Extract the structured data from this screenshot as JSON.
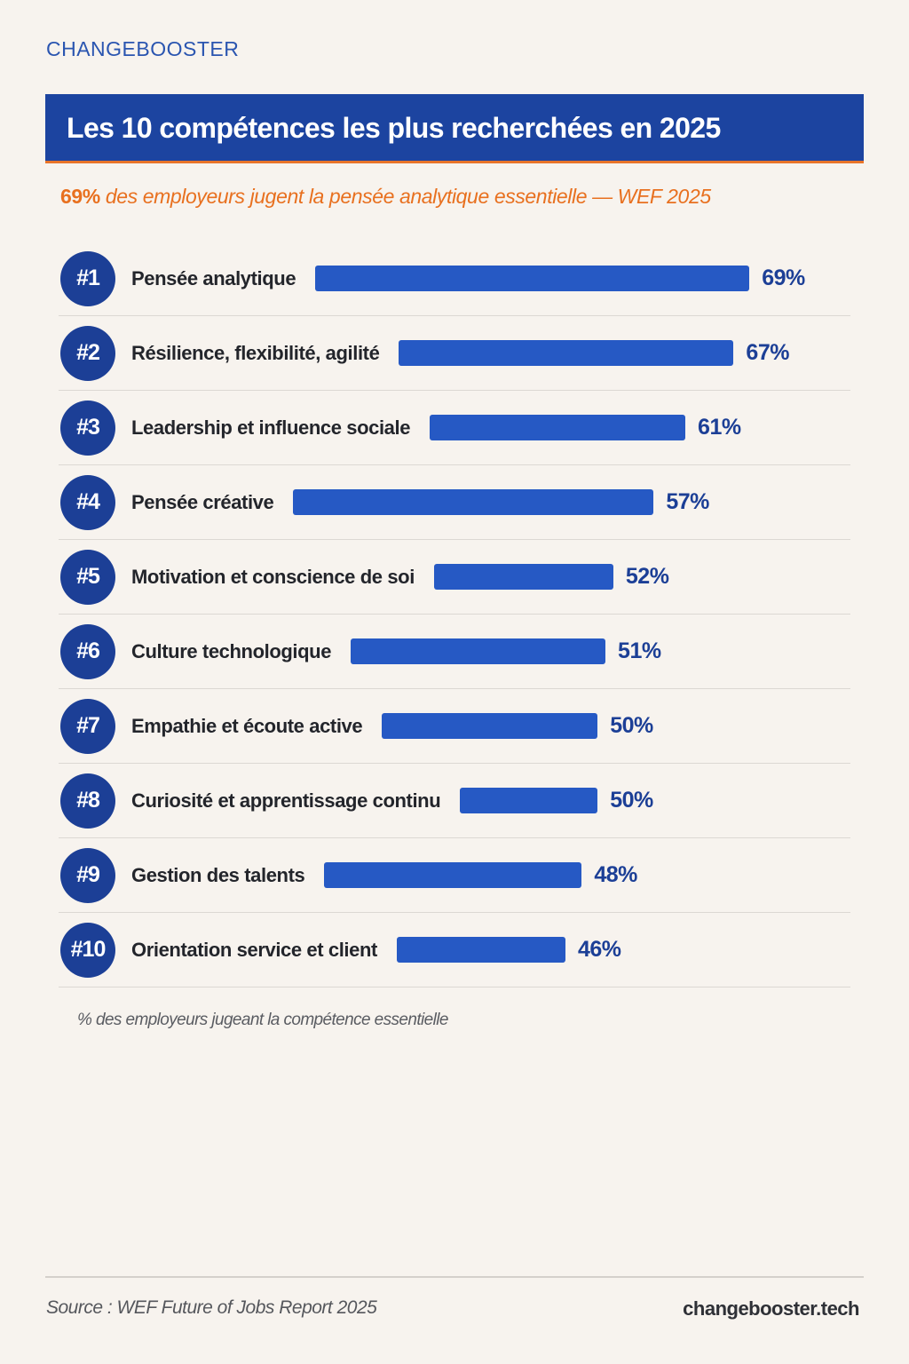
{
  "brand": "CHANGEBOOSTER",
  "colors": {
    "banner": "#1c44a0",
    "bar": "#2659c4",
    "badge": "#1c3f96",
    "accent": "#e8701f",
    "background": "#f7f3ee"
  },
  "chart_data": {
    "type": "bar",
    "orientation": "horizontal",
    "title": "Les 10 compétences les plus recherchées en 2025",
    "subtitle_highlight": "69%",
    "subtitle_rest": " des employeurs jugent la pensée analytique essentielle — WEF 2025",
    "ranks": [
      "#1",
      "#2",
      "#3",
      "#4",
      "#5",
      "#6",
      "#7",
      "#8",
      "#9",
      "#10"
    ],
    "categories": [
      "Pensée analytique",
      "Résilience, flexibilité, agilité",
      "Leadership et influence sociale",
      "Pensée créative",
      "Motivation et conscience de soi",
      "Culture technologique",
      "Empathie et écoute active",
      "Curiosité et apprentissage continu",
      "Gestion des talents",
      "Orientation service et client"
    ],
    "values": [
      69,
      67,
      61,
      57,
      52,
      51,
      50,
      50,
      48,
      46
    ],
    "value_labels": [
      "69%",
      "67%",
      "61%",
      "57%",
      "52%",
      "51%",
      "50%",
      "50%",
      "48%",
      "46%"
    ],
    "unit": "%",
    "note": "% des employeurs jugeant la compétence essentielle",
    "grid": false
  },
  "footer": {
    "source": "Source : WEF Future of Jobs Report 2025",
    "site": "changebooster.tech"
  }
}
